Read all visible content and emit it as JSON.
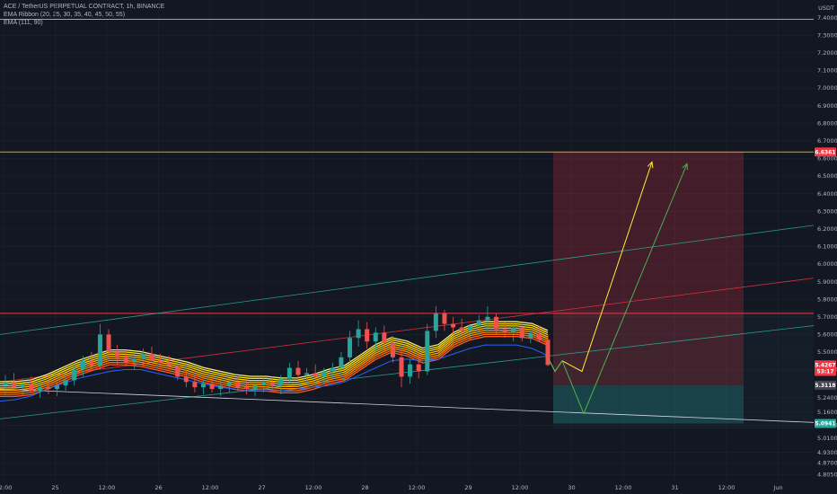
{
  "legend": {
    "symbol_line": "ACE / TetherUS PERPETUAL CONTRACT, 1h, BINANCE",
    "ema_ribbon": "EMA Ribbon (20, 25, 30, 35, 40, 45, 50, 55)",
    "ema": "EMA (111, 90)"
  },
  "currency": "USDT",
  "colors": {
    "background": "#131722",
    "grid": "#1e222d",
    "bull": "#26a69a",
    "bear": "#ef5350",
    "orange_line": "#ff9800",
    "red_line": "#f23645",
    "channel": "#2bb3a3",
    "yellow_arrow": "#ffeb3b",
    "green_arrow": "#4caf50",
    "ema_blue": "#2962ff"
  },
  "chart_data": {
    "type": "candlestick",
    "x_ticks": [
      "12:00",
      "25",
      "12:00",
      "26",
      "12:00",
      "27",
      "12:00",
      "28",
      "12:00",
      "29",
      "12:00",
      "30",
      "12:00",
      "31",
      "12:00",
      "Jun"
    ],
    "y_ticks": [
      "7.4000",
      "7.3000",
      "7.2000",
      "7.1000",
      "7.0000",
      "6.9000",
      "6.8000",
      "6.7000",
      "6.6000",
      "6.5000",
      "6.4000",
      "6.3000",
      "6.2000",
      "6.1000",
      "6.0000",
      "5.9000",
      "5.8000",
      "5.7000",
      "5.6000",
      "5.5000",
      "5.4000",
      "5.2400",
      "5.1600",
      "5.0850",
      "5.0100",
      "4.9300",
      "4.8700",
      "4.8050"
    ],
    "ylim": [
      4.77,
      7.5
    ],
    "price_tags": [
      {
        "label": "6.6361",
        "value": 6.6361,
        "color": "#f23645"
      },
      {
        "label": "5.4267",
        "value": 5.4267,
        "color": "#f23645"
      },
      {
        "label": "53:17",
        "value": 5.39,
        "color": "#f23645"
      },
      {
        "label": "5.3118",
        "value": 5.3118,
        "color": "#434651"
      },
      {
        "label": "5.0941",
        "value": 5.0941,
        "color": "#26a69a"
      }
    ],
    "horizontal_lines": [
      {
        "value": 7.39,
        "color": "#ff9800"
      },
      {
        "value": 6.6361,
        "color": "#ff9800"
      },
      {
        "value": 5.72,
        "color": "#f23645"
      }
    ],
    "position": {
      "entry": 5.3118,
      "target": 6.6361,
      "stop": 5.0941
    },
    "candles": [
      {
        "o": 5.31,
        "h": 5.37,
        "l": 5.26,
        "c": 5.33
      },
      {
        "o": 5.33,
        "h": 5.38,
        "l": 5.29,
        "c": 5.3
      },
      {
        "o": 5.3,
        "h": 5.35,
        "l": 5.25,
        "c": 5.32
      },
      {
        "o": 5.32,
        "h": 5.36,
        "l": 5.27,
        "c": 5.28
      },
      {
        "o": 5.28,
        "h": 5.33,
        "l": 5.24,
        "c": 5.3
      },
      {
        "o": 5.3,
        "h": 5.34,
        "l": 5.26,
        "c": 5.29
      },
      {
        "o": 5.29,
        "h": 5.33,
        "l": 5.25,
        "c": 5.31
      },
      {
        "o": 5.31,
        "h": 5.36,
        "l": 5.28,
        "c": 5.34
      },
      {
        "o": 5.34,
        "h": 5.42,
        "l": 5.31,
        "c": 5.4
      },
      {
        "o": 5.4,
        "h": 5.48,
        "l": 5.36,
        "c": 5.45
      },
      {
        "o": 5.45,
        "h": 5.5,
        "l": 5.39,
        "c": 5.42
      },
      {
        "o": 5.42,
        "h": 5.66,
        "l": 5.4,
        "c": 5.6
      },
      {
        "o": 5.6,
        "h": 5.63,
        "l": 5.46,
        "c": 5.5
      },
      {
        "o": 5.5,
        "h": 5.54,
        "l": 5.43,
        "c": 5.47
      },
      {
        "o": 5.47,
        "h": 5.51,
        "l": 5.42,
        "c": 5.44
      },
      {
        "o": 5.44,
        "h": 5.49,
        "l": 5.4,
        "c": 5.46
      },
      {
        "o": 5.46,
        "h": 5.52,
        "l": 5.42,
        "c": 5.49
      },
      {
        "o": 5.49,
        "h": 5.53,
        "l": 5.44,
        "c": 5.45
      },
      {
        "o": 5.45,
        "h": 5.49,
        "l": 5.41,
        "c": 5.44
      },
      {
        "o": 5.44,
        "h": 5.48,
        "l": 5.4,
        "c": 5.42
      },
      {
        "o": 5.42,
        "h": 5.45,
        "l": 5.34,
        "c": 5.36
      },
      {
        "o": 5.36,
        "h": 5.4,
        "l": 5.3,
        "c": 5.33
      },
      {
        "o": 5.33,
        "h": 5.37,
        "l": 5.27,
        "c": 5.3
      },
      {
        "o": 5.3,
        "h": 5.34,
        "l": 5.26,
        "c": 5.32
      },
      {
        "o": 5.32,
        "h": 5.35,
        "l": 5.27,
        "c": 5.29
      },
      {
        "o": 5.29,
        "h": 5.34,
        "l": 5.25,
        "c": 5.31
      },
      {
        "o": 5.31,
        "h": 5.35,
        "l": 5.27,
        "c": 5.33
      },
      {
        "o": 5.33,
        "h": 5.36,
        "l": 5.28,
        "c": 5.3
      },
      {
        "o": 5.3,
        "h": 5.34,
        "l": 5.26,
        "c": 5.29
      },
      {
        "o": 5.29,
        "h": 5.33,
        "l": 5.25,
        "c": 5.31
      },
      {
        "o": 5.31,
        "h": 5.35,
        "l": 5.27,
        "c": 5.33
      },
      {
        "o": 5.33,
        "h": 5.36,
        "l": 5.29,
        "c": 5.31
      },
      {
        "o": 5.31,
        "h": 5.37,
        "l": 5.26,
        "c": 5.35
      },
      {
        "o": 5.35,
        "h": 5.44,
        "l": 5.33,
        "c": 5.41
      },
      {
        "o": 5.41,
        "h": 5.45,
        "l": 5.34,
        "c": 5.37
      },
      {
        "o": 5.37,
        "h": 5.41,
        "l": 5.32,
        "c": 5.38
      },
      {
        "o": 5.38,
        "h": 5.43,
        "l": 5.34,
        "c": 5.36
      },
      {
        "o": 5.36,
        "h": 5.41,
        "l": 5.32,
        "c": 5.39
      },
      {
        "o": 5.39,
        "h": 5.44,
        "l": 5.35,
        "c": 5.41
      },
      {
        "o": 5.41,
        "h": 5.5,
        "l": 5.38,
        "c": 5.47
      },
      {
        "o": 5.47,
        "h": 5.62,
        "l": 5.44,
        "c": 5.58
      },
      {
        "o": 5.58,
        "h": 5.68,
        "l": 5.53,
        "c": 5.63
      },
      {
        "o": 5.63,
        "h": 5.67,
        "l": 5.52,
        "c": 5.56
      },
      {
        "o": 5.56,
        "h": 5.64,
        "l": 5.5,
        "c": 5.61
      },
      {
        "o": 5.61,
        "h": 5.65,
        "l": 5.52,
        "c": 5.55
      },
      {
        "o": 5.55,
        "h": 5.59,
        "l": 5.44,
        "c": 5.47
      },
      {
        "o": 5.47,
        "h": 5.51,
        "l": 5.3,
        "c": 5.36
      },
      {
        "o": 5.36,
        "h": 5.46,
        "l": 5.32,
        "c": 5.43
      },
      {
        "o": 5.43,
        "h": 5.5,
        "l": 5.35,
        "c": 5.39
      },
      {
        "o": 5.39,
        "h": 5.66,
        "l": 5.37,
        "c": 5.62
      },
      {
        "o": 5.62,
        "h": 5.76,
        "l": 5.58,
        "c": 5.72
      },
      {
        "o": 5.72,
        "h": 5.74,
        "l": 5.62,
        "c": 5.66
      },
      {
        "o": 5.66,
        "h": 5.7,
        "l": 5.6,
        "c": 5.64
      },
      {
        "o": 5.64,
        "h": 5.69,
        "l": 5.59,
        "c": 5.62
      },
      {
        "o": 5.62,
        "h": 5.66,
        "l": 5.57,
        "c": 5.65
      },
      {
        "o": 5.65,
        "h": 5.71,
        "l": 5.61,
        "c": 5.68
      },
      {
        "o": 5.68,
        "h": 5.76,
        "l": 5.62,
        "c": 5.7
      },
      {
        "o": 5.7,
        "h": 5.72,
        "l": 5.6,
        "c": 5.63
      },
      {
        "o": 5.63,
        "h": 5.67,
        "l": 5.58,
        "c": 5.61
      },
      {
        "o": 5.61,
        "h": 5.66,
        "l": 5.56,
        "c": 5.64
      },
      {
        "o": 5.64,
        "h": 5.66,
        "l": 5.56,
        "c": 5.58
      },
      {
        "o": 5.58,
        "h": 5.62,
        "l": 5.55,
        "c": 5.6
      },
      {
        "o": 5.6,
        "h": 5.65,
        "l": 5.56,
        "c": 5.57
      },
      {
        "o": 5.57,
        "h": 5.6,
        "l": 5.42,
        "c": 5.4267
      }
    ],
    "ribbon_start": 5.29,
    "ribbon_points": [
      5.29,
      5.29,
      5.3,
      5.33,
      5.37,
      5.41,
      5.44,
      5.47,
      5.47,
      5.46,
      5.44,
      5.42,
      5.4,
      5.37,
      5.35,
      5.33,
      5.32,
      5.32,
      5.31,
      5.31,
      5.33,
      5.36,
      5.38,
      5.44,
      5.5,
      5.54,
      5.52,
      5.48,
      5.5,
      5.57,
      5.61,
      5.63,
      5.63,
      5.63,
      5.62,
      5.58
    ],
    "ema_points": [
      5.22,
      5.23,
      5.25,
      5.29,
      5.32,
      5.35,
      5.37,
      5.39,
      5.4,
      5.4,
      5.38,
      5.36,
      5.34,
      5.32,
      5.3,
      5.29,
      5.28,
      5.28,
      5.28,
      5.29,
      5.3,
      5.31,
      5.33,
      5.37,
      5.41,
      5.45,
      5.46,
      5.45,
      5.46,
      5.49,
      5.52,
      5.54,
      5.54,
      5.54,
      5.52,
      5.48
    ],
    "channel_lines": [
      {
        "from": 5.6,
        "to": 6.22,
        "color": "#2bb3a3"
      },
      {
        "from": 5.33,
        "to": 5.92,
        "color": "#f23645"
      },
      {
        "from": 5.12,
        "to": 5.65,
        "color": "#2bb3a3"
      }
    ],
    "lower_trend": {
      "from": 5.29,
      "to": 5.1
    },
    "arrows": [
      {
        "color": "#ffeb3b",
        "points": [
          [
            0,
            5.45
          ],
          [
            1,
            5.39
          ],
          [
            2,
            5.45
          ],
          [
            3,
            5.39
          ],
          [
            4,
            6.58
          ]
        ]
      },
      {
        "color": "#4caf50",
        "points": [
          [
            0,
            5.45
          ],
          [
            1,
            5.39
          ],
          [
            2,
            5.45
          ],
          [
            3,
            5.15
          ],
          [
            4,
            6.57
          ]
        ]
      }
    ]
  }
}
